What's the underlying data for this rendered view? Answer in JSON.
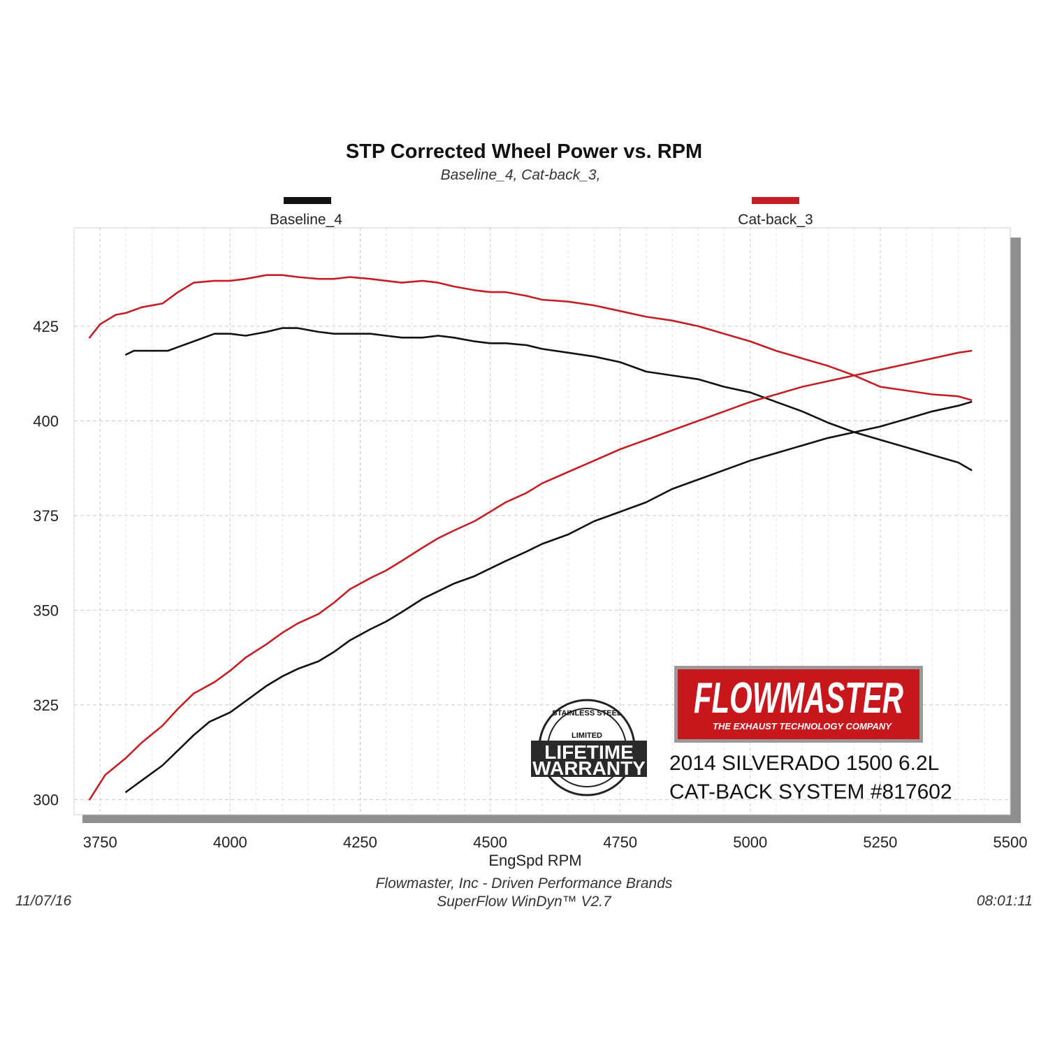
{
  "chart_data": {
    "type": "line",
    "title": "STP Corrected Wheel Power vs. RPM",
    "subtitle": "Baseline_4, Cat-back_3,",
    "xlabel": "EngSpd RPM",
    "ylabel": "",
    "xlim": [
      3700,
      5500
    ],
    "ylim": [
      296,
      451
    ],
    "xticks": [
      3750,
      4000,
      4250,
      4500,
      4750,
      5000,
      5250,
      5500
    ],
    "yticks": [
      300,
      325,
      350,
      375,
      400,
      425
    ],
    "grid": true,
    "legend_position": "top",
    "series": [
      {
        "name": "Baseline_4",
        "color": "#111111",
        "curves": [
          {
            "x": [
              3800,
              3815,
              3850,
              3880,
              3900,
              3940,
              3970,
              4000,
              4030,
              4070,
              4100,
              4130,
              4170,
              4200,
              4230,
              4270,
              4300,
              4330,
              4370,
              4400,
              4430,
              4470,
              4500,
              4530,
              4570,
              4600,
              4650,
              4700,
              4750,
              4800,
              4850,
              4900,
              4950,
              5000,
              5050,
              5100,
              5150,
              5200,
              5250,
              5300,
              5350,
              5400,
              5425
            ],
            "y": [
              417.5,
              418.5,
              418.5,
              418.5,
              419.5,
              421.5,
              423.0,
              423.0,
              422.5,
              423.5,
              424.5,
              424.5,
              423.5,
              423.0,
              423.0,
              423.0,
              422.5,
              422.0,
              422.0,
              422.5,
              422.0,
              421.0,
              420.5,
              420.5,
              420.0,
              419.0,
              418.0,
              417.0,
              415.5,
              413.0,
              412.0,
              411.0,
              409.0,
              407.5,
              405.0,
              402.5,
              399.5,
              397.0,
              395.0,
              393.0,
              391.0,
              389.0,
              387.0
            ]
          },
          {
            "x": [
              3800,
              3830,
              3870,
              3900,
              3930,
              3960,
              4000,
              4030,
              4070,
              4100,
              4130,
              4170,
              4200,
              4230,
              4270,
              4300,
              4330,
              4370,
              4400,
              4430,
              4470,
              4500,
              4530,
              4570,
              4600,
              4650,
              4700,
              4750,
              4800,
              4850,
              4900,
              4950,
              5000,
              5050,
              5100,
              5150,
              5200,
              5250,
              5300,
              5350,
              5400,
              5425
            ],
            "y": [
              302.0,
              305.0,
              309.0,
              313.0,
              317.0,
              320.5,
              323.0,
              326.0,
              330.0,
              332.5,
              334.5,
              336.5,
              339.0,
              342.0,
              345.0,
              347.0,
              349.5,
              353.0,
              355.0,
              357.0,
              359.0,
              361.0,
              363.0,
              365.5,
              367.5,
              370.0,
              373.5,
              376.0,
              378.5,
              382.0,
              384.5,
              387.0,
              389.5,
              391.5,
              393.5,
              395.5,
              397.0,
              398.5,
              400.5,
              402.5,
              404.0,
              405.0
            ]
          }
        ]
      },
      {
        "name": "Cat-back_3",
        "color": "#c41f24",
        "curves": [
          {
            "x": [
              3730,
              3750,
              3780,
              3800,
              3830,
              3870,
              3900,
              3930,
              3970,
              4000,
              4030,
              4070,
              4100,
              4130,
              4170,
              4200,
              4230,
              4270,
              4300,
              4330,
              4370,
              4400,
              4430,
              4470,
              4500,
              4530,
              4570,
              4600,
              4650,
              4700,
              4750,
              4800,
              4850,
              4900,
              4950,
              5000,
              5050,
              5100,
              5150,
              5200,
              5250,
              5300,
              5350,
              5400,
              5425
            ],
            "y": [
              422.0,
              425.5,
              428.0,
              428.5,
              430.0,
              431.0,
              434.0,
              436.5,
              437.0,
              437.0,
              437.5,
              438.5,
              438.5,
              438.0,
              437.5,
              437.5,
              438.0,
              437.5,
              437.0,
              436.5,
              437.0,
              436.5,
              435.5,
              434.5,
              434.0,
              434.0,
              433.0,
              432.0,
              431.5,
              430.5,
              429.0,
              427.5,
              426.5,
              425.0,
              423.0,
              421.0,
              418.5,
              416.5,
              414.5,
              412.0,
              409.0,
              408.0,
              407.0,
              406.5,
              405.5
            ]
          },
          {
            "x": [
              3730,
              3760,
              3800,
              3830,
              3870,
              3900,
              3930,
              3970,
              4000,
              4030,
              4070,
              4100,
              4130,
              4170,
              4200,
              4230,
              4270,
              4300,
              4330,
              4370,
              4400,
              4430,
              4470,
              4500,
              4530,
              4570,
              4600,
              4650,
              4700,
              4750,
              4800,
              4850,
              4900,
              4950,
              5000,
              5050,
              5100,
              5150,
              5200,
              5250,
              5300,
              5350,
              5400,
              5425
            ],
            "y": [
              300.0,
              306.5,
              311.0,
              315.0,
              319.5,
              324.0,
              328.0,
              331.0,
              334.0,
              337.5,
              341.0,
              344.0,
              346.5,
              349.0,
              352.0,
              355.5,
              358.5,
              360.5,
              363.0,
              366.5,
              369.0,
              371.0,
              373.5,
              376.0,
              378.5,
              381.0,
              383.5,
              386.5,
              389.5,
              392.5,
              395.0,
              397.5,
              400.0,
              402.5,
              405.0,
              407.0,
              409.0,
              410.5,
              412.0,
              413.5,
              415.0,
              416.5,
              418.0,
              418.5
            ]
          }
        ]
      }
    ]
  },
  "footer": {
    "company": "Flowmaster, Inc - Driven Performance Brands",
    "software": "SuperFlow WinDyn™ V2.7",
    "date": "11/07/16",
    "time": "08:01:11"
  },
  "branding": {
    "logo_text": "FLOWMASTER",
    "logo_tagline": "THE EXHAUST TECHNOLOGY COMPANY",
    "logo_red": "#c8161d",
    "badge_top": "STAINLESS STEEL",
    "badge_limited": "LIMITED",
    "badge_line1": "LIFETIME",
    "badge_line2": "WARRANTY",
    "caption_line1": "2014 SILVERADO 1500 6.2L",
    "caption_line2": "CAT-BACK SYSTEM #817602"
  }
}
